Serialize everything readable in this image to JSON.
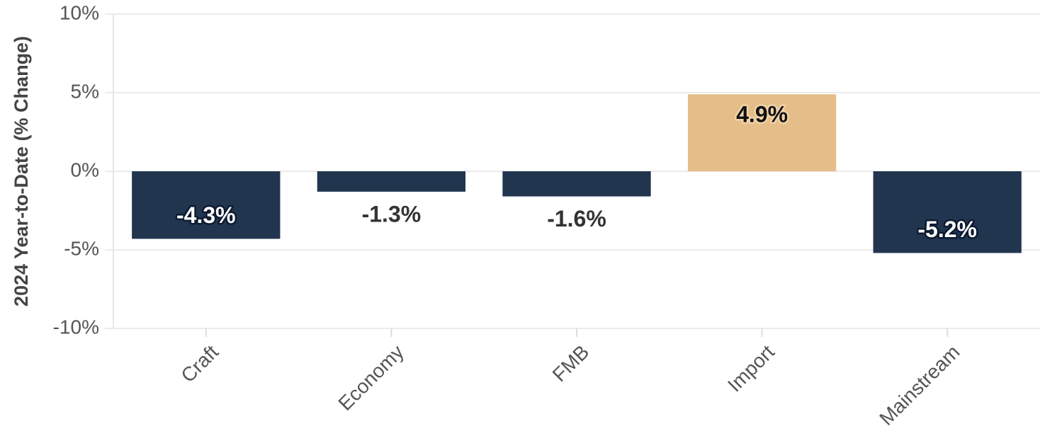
{
  "chart_data": {
    "type": "bar",
    "y_label": "2024 Year-to-Date (% Change)",
    "categories": [
      "Craft",
      "Economy",
      "FMB",
      "Import",
      "Mainstream"
    ],
    "values": [
      -4.3,
      -1.3,
      -1.6,
      4.9,
      -5.2
    ],
    "value_labels": [
      "-4.3%",
      "-1.3%",
      "-1.6%",
      "4.9%",
      "-5.2%"
    ],
    "colors": [
      "#22354f",
      "#22354f",
      "#22354f",
      "#e5bd89",
      "#22354f"
    ],
    "ylim": [
      -10,
      10
    ],
    "yticks": [
      {
        "value": -10,
        "label": "-10%"
      },
      {
        "value": -5,
        "label": "-5%"
      },
      {
        "value": 0,
        "label": "0%"
      },
      {
        "value": 5,
        "label": "5%"
      },
      {
        "value": 10,
        "label": "10%"
      }
    ],
    "grid": true
  }
}
